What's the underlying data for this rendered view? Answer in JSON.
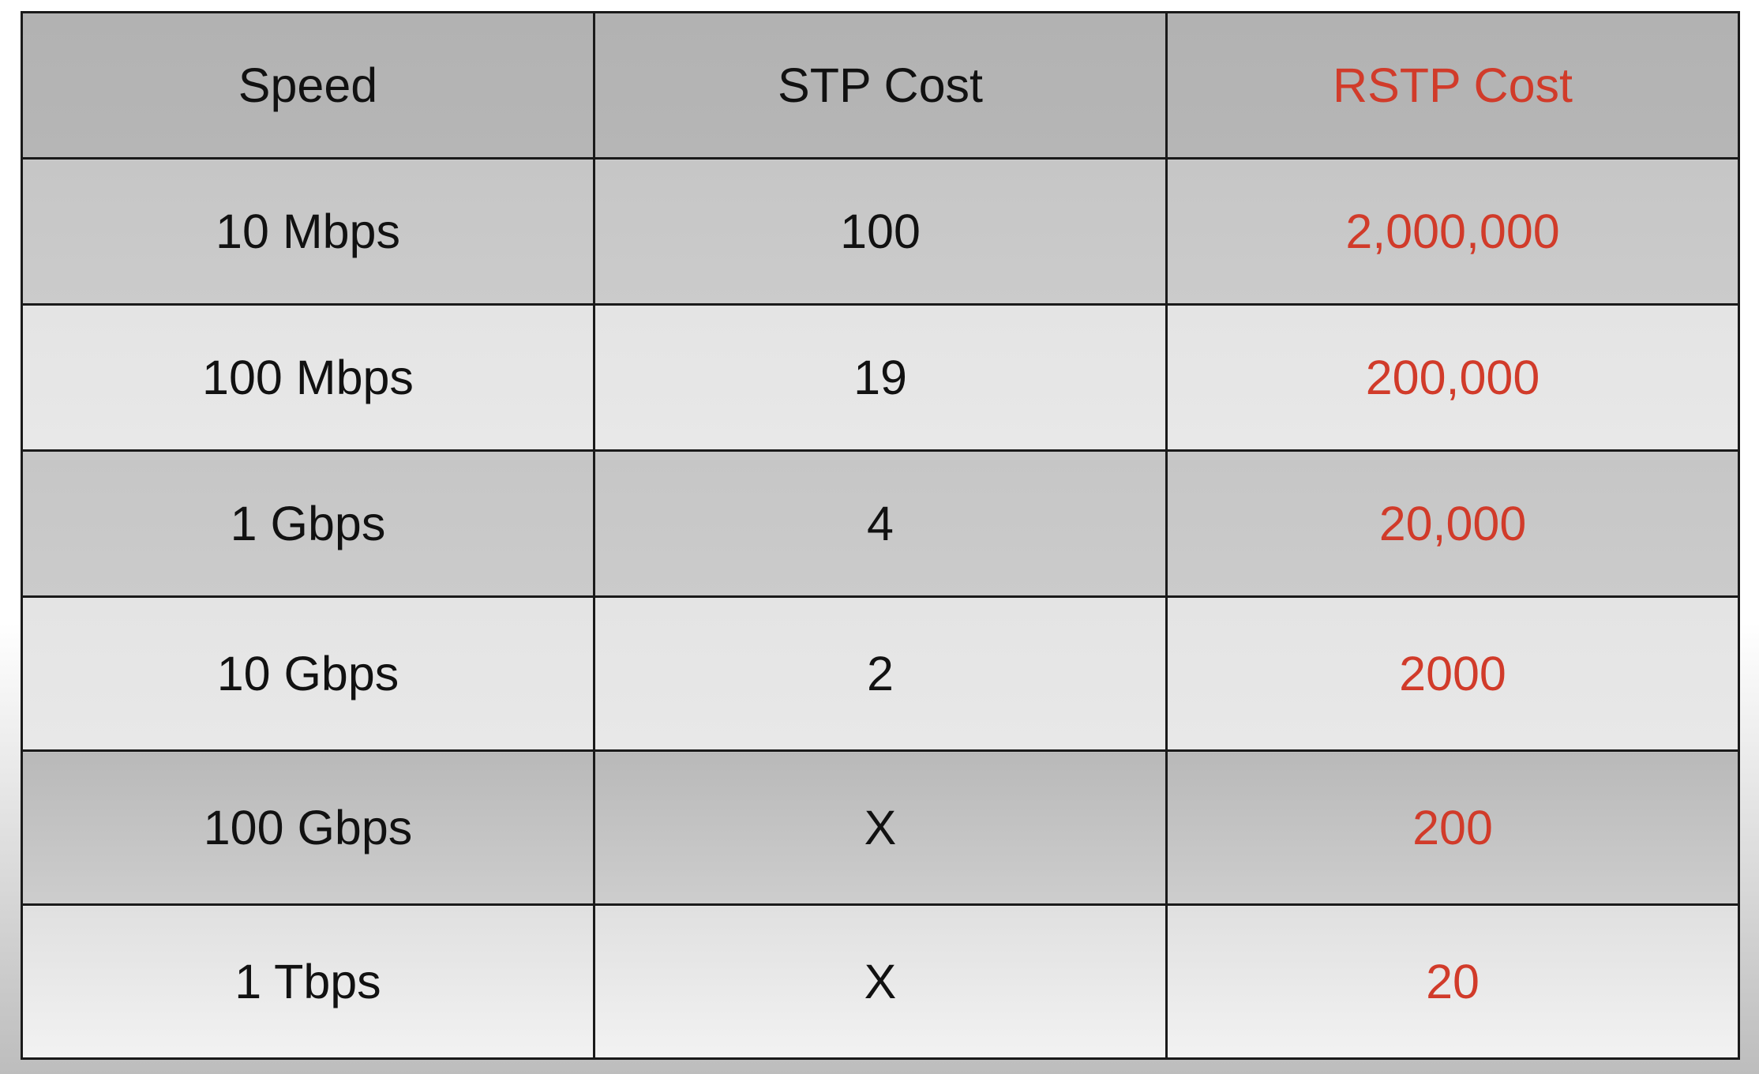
{
  "table": {
    "headers": [
      "Speed",
      "STP Cost",
      "RSTP Cost"
    ],
    "rows": [
      [
        "10 Mbps",
        "100",
        "2,000,000"
      ],
      [
        "100 Mbps",
        "19",
        "200,000"
      ],
      [
        "1 Gbps",
        "4",
        "20,000"
      ],
      [
        "10 Gbps",
        "2",
        "2000"
      ],
      [
        "100 Gbps",
        "X",
        "200"
      ],
      [
        "1 Tbps",
        "X",
        "20"
      ]
    ]
  },
  "colors": {
    "rstp_text": "#d13b2a",
    "header_bg": "#b4b4b4",
    "dark_row_bg": "#c9c9c9",
    "light_row_bg": "#e6e6e6",
    "border": "#1a1a1a"
  }
}
